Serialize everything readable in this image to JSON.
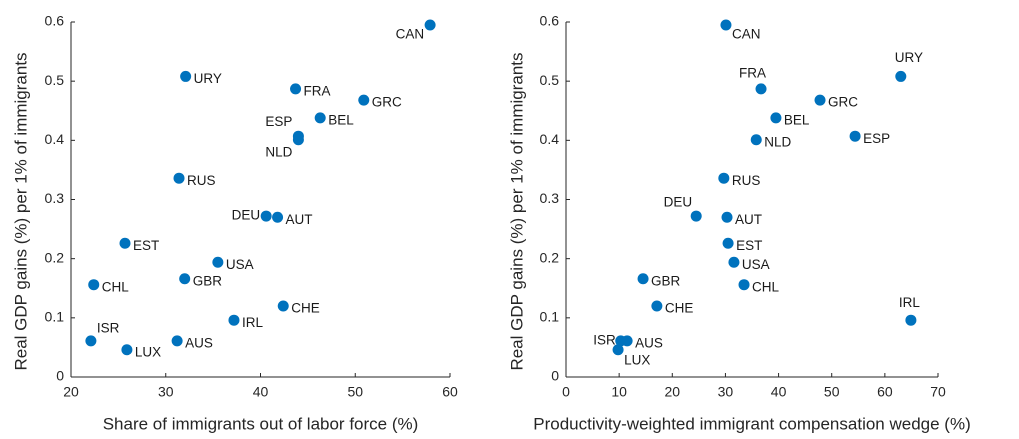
{
  "chart_data": [
    {
      "type": "scatter",
      "color": "#0072bd",
      "xlabel": "Share of immigrants out of labor force (%)",
      "ylabel": "Real GDP gains (%) per 1% of immigrants",
      "xlim": [
        20,
        60
      ],
      "xticks": [
        20,
        30,
        40,
        50,
        60
      ],
      "ylim": [
        0,
        0.6
      ],
      "yticks": [
        0,
        0.1,
        0.2,
        0.3,
        0.4,
        0.5,
        0.6
      ],
      "labels": [
        "CAN",
        "URY",
        "FRA",
        "GRC",
        "BEL",
        "ESP",
        "NLD",
        "RUS",
        "DEU",
        "AUT",
        "EST",
        "USA",
        "GBR",
        "CHL",
        "CHE",
        "IRL",
        "ISR",
        "AUS",
        "LUX"
      ],
      "x": [
        57.9,
        32.1,
        43.7,
        50.9,
        46.3,
        44.0,
        44.0,
        31.4,
        40.6,
        41.8,
        25.7,
        35.5,
        32.0,
        22.4,
        42.4,
        37.2,
        22.1,
        31.2,
        25.9
      ],
      "values": [
        0.595,
        0.508,
        0.487,
        0.468,
        0.438,
        0.407,
        0.401,
        0.336,
        0.272,
        0.27,
        0.226,
        0.194,
        0.166,
        0.156,
        0.12,
        0.096,
        0.061,
        0.061,
        0.046
      ]
    },
    {
      "type": "scatter",
      "color": "#0072bd",
      "xlabel": "Productivity-weighted immigrant compensation wedge (%)",
      "ylabel": "Real GDP gains (%) per 1% of immigrants",
      "xlim": [
        0,
        70
      ],
      "xticks": [
        0,
        10,
        20,
        30,
        40,
        50,
        60,
        70
      ],
      "ylim": [
        0,
        0.6
      ],
      "yticks": [
        0,
        0.1,
        0.2,
        0.3,
        0.4,
        0.5,
        0.6
      ],
      "labels": [
        "CAN",
        "URY",
        "FRA",
        "GRC",
        "BEL",
        "ESP",
        "NLD",
        "RUS",
        "DEU",
        "AUT",
        "EST",
        "USA",
        "GBR",
        "CHL",
        "CHE",
        "IRL",
        "ISR",
        "AUS",
        "LUX"
      ],
      "x": [
        30.1,
        63.0,
        36.7,
        47.8,
        39.5,
        54.4,
        35.8,
        29.7,
        24.5,
        30.3,
        30.5,
        31.6,
        14.5,
        33.5,
        17.1,
        64.9,
        10.3,
        11.5,
        9.8
      ],
      "values": [
        0.595,
        0.508,
        0.487,
        0.468,
        0.438,
        0.407,
        0.401,
        0.336,
        0.272,
        0.27,
        0.226,
        0.194,
        0.166,
        0.156,
        0.12,
        0.096,
        0.061,
        0.061,
        0.046
      ]
    }
  ]
}
